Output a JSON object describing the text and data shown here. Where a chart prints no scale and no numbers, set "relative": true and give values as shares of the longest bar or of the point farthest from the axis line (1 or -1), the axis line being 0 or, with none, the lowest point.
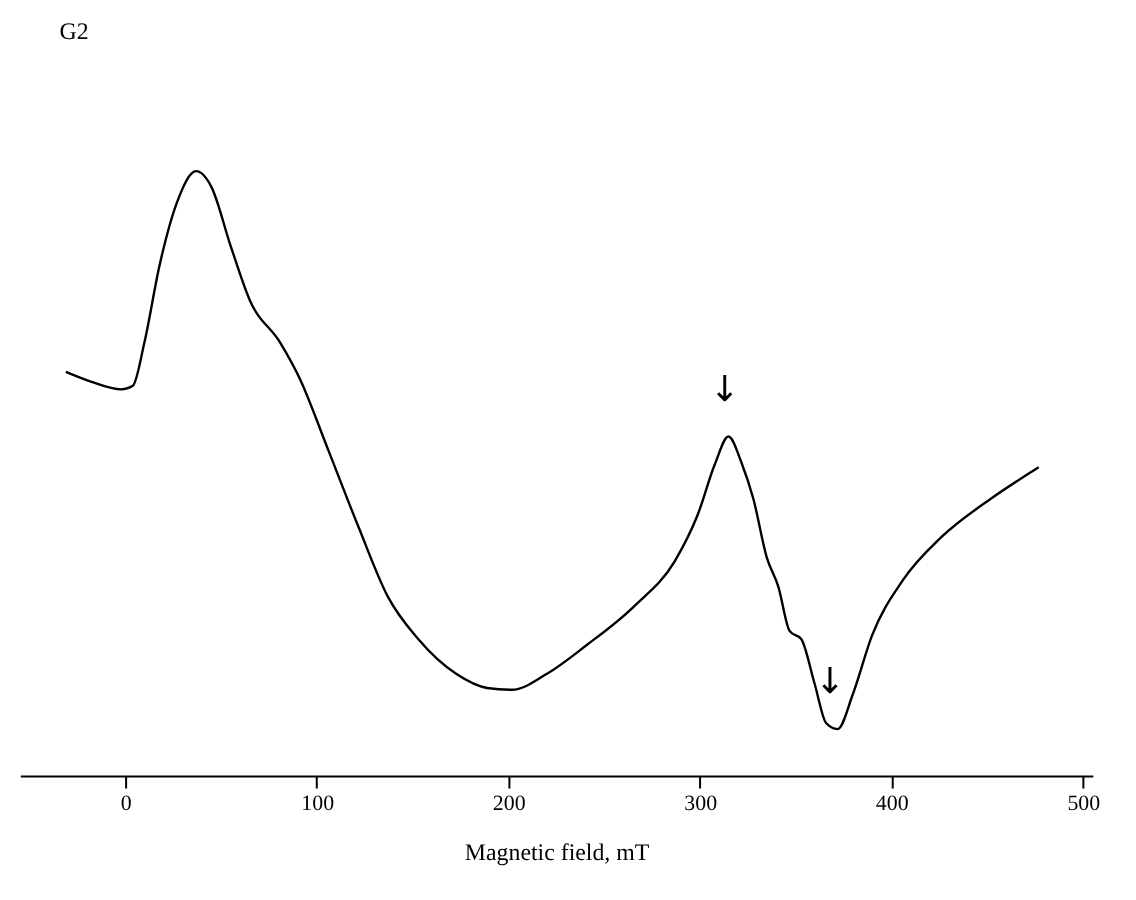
{
  "chart_data": {
    "type": "line",
    "title": "G2",
    "xlabel": "Magnetic field, mT",
    "relative": true,
    "xlim": [
      -55,
      505
    ],
    "xticks": [
      0,
      100,
      200,
      300,
      400,
      500
    ],
    "grid": false,
    "marker": "none",
    "line_style": "solid",
    "x": [
      -31,
      -18,
      -2,
      4,
      10,
      18,
      27,
      37,
      45,
      55,
      65,
      81,
      91,
      106,
      122,
      137,
      153,
      173,
      189,
      202,
      220,
      241,
      266,
      287,
      299,
      308,
      315,
      322,
      328,
      335,
      341,
      347,
      353,
      360,
      366,
      372,
      380,
      390,
      406,
      426,
      452,
      477
    ],
    "series": [
      {
        "color": "#000000",
        "values": [
          0.668,
          0.652,
          0.639,
          0.645,
          0.716,
          0.845,
          0.948,
          1.0,
          0.974,
          0.877,
          0.787,
          0.716,
          0.658,
          0.539,
          0.41,
          0.297,
          0.226,
          0.168,
          0.145,
          0.142,
          0.168,
          0.216,
          0.281,
          0.355,
          0.432,
          0.516,
          0.561,
          0.516,
          0.458,
          0.361,
          0.313,
          0.239,
          0.226,
          0.152,
          0.087,
          0.077,
          0.135,
          0.232,
          0.323,
          0.394,
          0.458,
          0.51
        ]
      }
    ],
    "annotations": [
      {
        "text": "↓",
        "x": 313,
        "y": 0.561
      },
      {
        "text": "↓",
        "x": 368,
        "y": 0.077
      }
    ]
  }
}
